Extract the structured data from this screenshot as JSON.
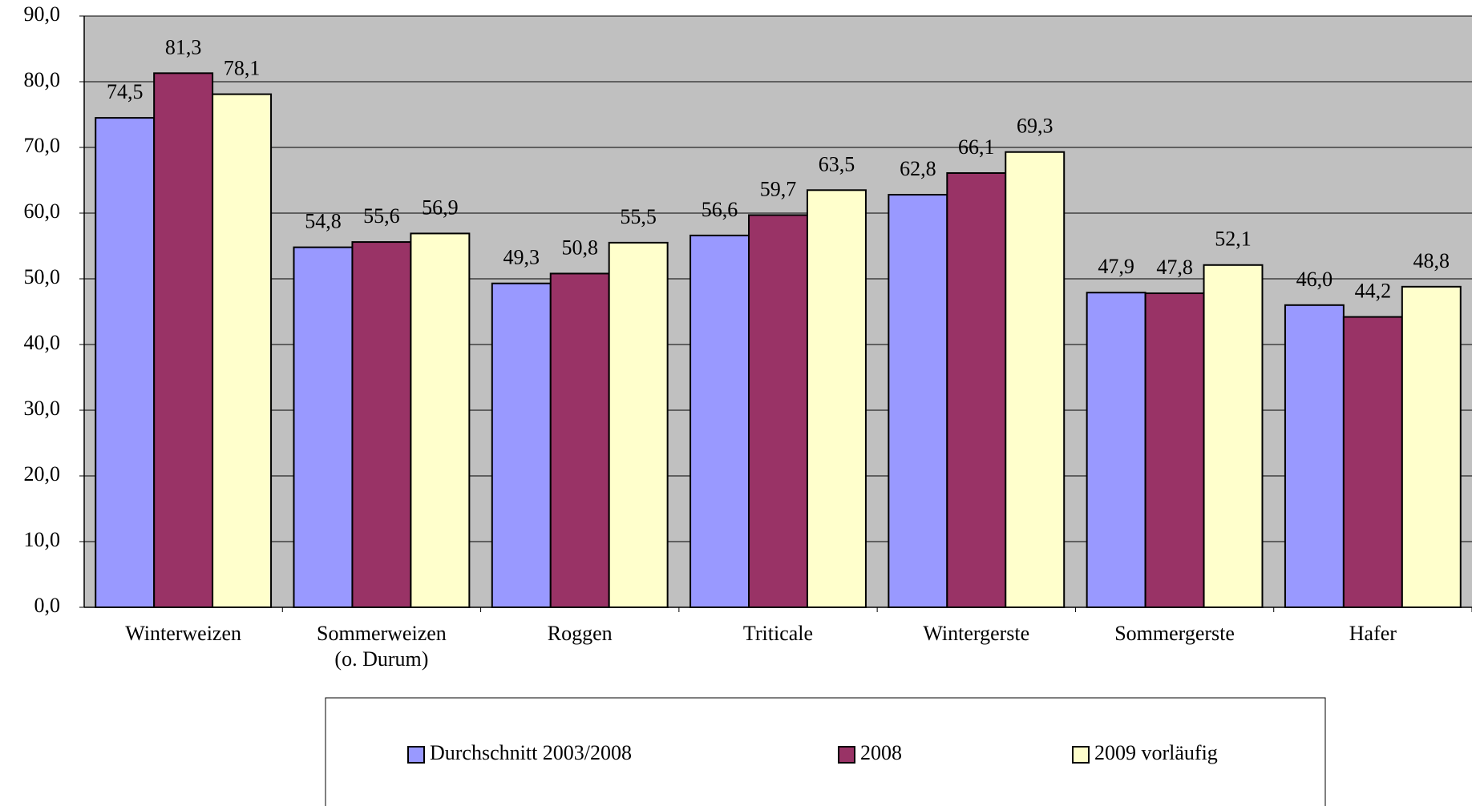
{
  "chart_data": {
    "type": "bar",
    "categories": [
      "Winterweizen",
      "Sommerweizen\n(o. Durum)",
      "Roggen",
      "Triticale",
      "Wintergerste",
      "Sommergerste",
      "Hafer"
    ],
    "series": [
      {
        "name": "Durchschnitt 2003/2008",
        "color": "#9999ff",
        "values": [
          74.5,
          54.8,
          49.3,
          56.6,
          62.8,
          47.9,
          46.0
        ],
        "value_labels": [
          "74,5",
          "54,8",
          "49,3",
          "56,6",
          "62,8",
          "47,9",
          "46,0"
        ]
      },
      {
        "name": "2008",
        "color": "#993366",
        "values": [
          81.3,
          55.6,
          50.8,
          59.7,
          66.1,
          47.8,
          44.2
        ],
        "value_labels": [
          "81,3",
          "55,6",
          "50,8",
          "59,7",
          "66,1",
          "47,8",
          "44,2"
        ]
      },
      {
        "name": "2009 vorläufig",
        "color": "#ffffcc",
        "values": [
          78.1,
          56.9,
          55.5,
          63.5,
          69.3,
          52.1,
          48.8
        ],
        "value_labels": [
          "78,1",
          "56,9",
          "55,5",
          "63,5",
          "69,3",
          "52,1",
          "48,8"
        ]
      }
    ],
    "ylim": [
      0,
      90
    ],
    "yticks": [
      {
        "value": 0,
        "label": "0,0"
      },
      {
        "value": 10,
        "label": "10,0"
      },
      {
        "value": 20,
        "label": "20,0"
      },
      {
        "value": 30,
        "label": "30,0"
      },
      {
        "value": 40,
        "label": "40,0"
      },
      {
        "value": 50,
        "label": "50,0"
      },
      {
        "value": 60,
        "label": "60,0"
      },
      {
        "value": 70,
        "label": "70,0"
      },
      {
        "value": 80,
        "label": "80,0"
      },
      {
        "value": 90,
        "label": "90,0"
      }
    ],
    "grid": true,
    "background": "#c0c0c0",
    "legend": "bottom"
  }
}
